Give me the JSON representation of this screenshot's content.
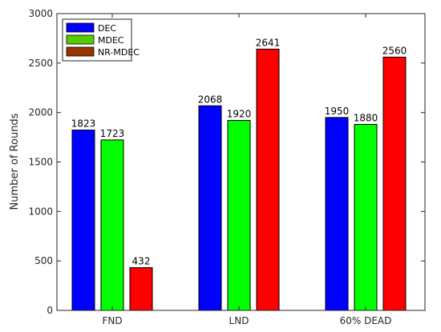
{
  "chart_data": {
    "type": "bar",
    "categories": [
      "FND",
      "LND",
      "60% DEAD"
    ],
    "series": [
      {
        "name": "DEC",
        "values": [
          1823,
          2068,
          1950
        ],
        "color": "#0000ff"
      },
      {
        "name": "MDEC",
        "values": [
          1723,
          1920,
          1880
        ],
        "color": "#00ff00"
      },
      {
        "name": "NR-MDEC",
        "values": [
          432,
          2641,
          2560
        ],
        "color": "#ff0000"
      }
    ],
    "legend_swatch_colors": [
      "#0000ff",
      "#55cc00",
      "#993300"
    ],
    "title": "",
    "xlabel": "",
    "ylabel": "Number of Rounds",
    "ylim": [
      0,
      3000
    ],
    "yticks": [
      0,
      500,
      1000,
      1500,
      2000,
      2500,
      3000
    ],
    "grid": false,
    "legend_position": "top-left"
  }
}
